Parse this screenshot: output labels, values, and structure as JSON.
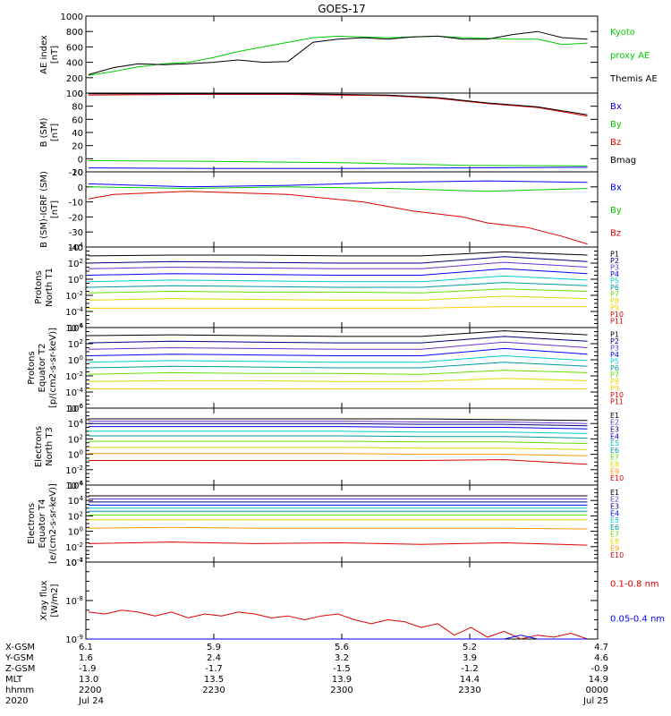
{
  "title": "GOES-17",
  "colors": {
    "black": "#000000",
    "blue": "#0000ff",
    "green": "#00cc00",
    "red": "#dd0000",
    "dark_red": "#bb0000",
    "navy": "#000080",
    "purple": "#6633cc",
    "cyan": "#00cccc",
    "teal": "#009999",
    "lime": "#66dd00",
    "yellow": "#dddd00",
    "orange": "#ff9900"
  },
  "chart_data": [
    {
      "type": "line",
      "ylabel": "AE index [nT]",
      "ylim": [
        0,
        1000
      ],
      "ticks": [
        "0",
        "200",
        "400",
        "600",
        "800",
        "1000"
      ],
      "legend": [
        "Kyoto",
        "proxy AE",
        "Themis AE"
      ],
      "series": [
        {
          "name": "Kyoto proxy AE",
          "color": "#00cc00",
          "x": [
            0,
            0.05,
            0.1,
            0.15,
            0.2,
            0.25,
            0.3,
            0.35,
            0.4,
            0.45,
            0.5,
            0.55,
            0.6,
            0.65,
            0.7,
            0.75,
            0.8,
            0.85,
            0.9,
            0.95,
            1
          ],
          "y": [
            230,
            280,
            340,
            380,
            400,
            460,
            540,
            600,
            660,
            720,
            740,
            730,
            720,
            730,
            740,
            720,
            710,
            700,
            700,
            630,
            650
          ]
        },
        {
          "name": "Themis AE",
          "color": "#000000",
          "x": [
            0,
            0.05,
            0.1,
            0.15,
            0.2,
            0.25,
            0.3,
            0.35,
            0.4,
            0.45,
            0.5,
            0.55,
            0.6,
            0.65,
            0.7,
            0.75,
            0.8,
            0.85,
            0.9,
            0.95,
            1
          ],
          "y": [
            240,
            330,
            380,
            370,
            380,
            400,
            430,
            400,
            410,
            660,
            700,
            720,
            700,
            730,
            740,
            700,
            700,
            760,
            800,
            720,
            700
          ]
        }
      ]
    },
    {
      "type": "line",
      "ylabel": "B (SM) [nT]",
      "ylim": [
        -20,
        100
      ],
      "ticks": [
        "-20",
        "0",
        "20",
        "40",
        "60",
        "80",
        "100"
      ],
      "legend": [
        "Bx",
        "By",
        "Bz",
        "Bmag"
      ],
      "series": [
        {
          "name": "Bx",
          "color": "#0000ff",
          "x": [
            0,
            0.25,
            0.5,
            0.75,
            1
          ],
          "y": [
            -14,
            -15,
            -15,
            -14,
            -13
          ]
        },
        {
          "name": "By",
          "color": "#00cc00",
          "x": [
            0,
            0.25,
            0.5,
            0.75,
            1
          ],
          "y": [
            -3,
            -4,
            -6,
            -10,
            -11
          ]
        },
        {
          "name": "Bz",
          "color": "#dd0000",
          "x": [
            0,
            0.2,
            0.4,
            0.6,
            0.7,
            0.8,
            0.9,
            1
          ],
          "y": [
            97,
            98,
            98,
            96,
            92,
            84,
            78,
            65
          ]
        },
        {
          "name": "Bmag",
          "color": "#000000",
          "x": [
            0,
            0.2,
            0.4,
            0.6,
            0.7,
            0.8,
            0.9,
            1
          ],
          "y": [
            99,
            99,
            99,
            97,
            93,
            85,
            79,
            67
          ]
        }
      ]
    },
    {
      "type": "line",
      "ylabel": "B (SM)-IGRF (SM) [nT]",
      "ylim": [
        -40,
        10
      ],
      "ticks": [
        "-40",
        "-30",
        "-20",
        "-10",
        "0",
        "10"
      ],
      "legend": [
        "Bx",
        "By",
        "Bz"
      ],
      "series": [
        {
          "name": "Bx",
          "color": "#0000ff",
          "x": [
            0,
            0.2,
            0.4,
            0.6,
            0.8,
            1
          ],
          "y": [
            2,
            0,
            1,
            3,
            4,
            3
          ]
        },
        {
          "name": "By",
          "color": "#00cc00",
          "x": [
            0,
            0.2,
            0.4,
            0.6,
            0.8,
            1
          ],
          "y": [
            0,
            -1,
            0,
            -1,
            -3,
            -1
          ]
        },
        {
          "name": "Bz",
          "color": "#dd0000",
          "x": [
            0,
            0.05,
            0.2,
            0.4,
            0.55,
            0.65,
            0.75,
            0.8,
            0.88,
            0.95,
            1
          ],
          "y": [
            -8,
            -5,
            -3,
            -5,
            -10,
            -16,
            -20,
            -24,
            -27,
            -33,
            -38
          ]
        }
      ]
    },
    {
      "type": "line",
      "ylabel": "Protons North T1",
      "log": true,
      "ylim": [
        -6,
        4
      ],
      "ticks": [
        "10^-6",
        "10^-4",
        "10^-2",
        "10^0",
        "10^2",
        "10^4"
      ],
      "legend": [
        "P1",
        "P2",
        "P3",
        "P4",
        "P5",
        "P6",
        "P7",
        "P8",
        "P9",
        "P10",
        "P11"
      ],
      "series": [
        {
          "name": "P1",
          "color": "#000000",
          "y": [
            2.9,
            3.0,
            3.0,
            2.9,
            2.9,
            3.4,
            3.0
          ]
        },
        {
          "name": "P2",
          "color": "#000080",
          "y": [
            2.0,
            2.2,
            2.1,
            2.0,
            2.0,
            2.8,
            2.2
          ]
        },
        {
          "name": "P3",
          "color": "#6633cc",
          "y": [
            1.3,
            1.5,
            1.4,
            1.3,
            1.3,
            2.1,
            1.5
          ]
        },
        {
          "name": "P4",
          "color": "#0000ff",
          "y": [
            0.5,
            0.7,
            0.6,
            0.5,
            0.5,
            1.3,
            0.7
          ]
        },
        {
          "name": "P5",
          "color": "#00cccc",
          "y": [
            -0.3,
            -0.1,
            -0.2,
            -0.3,
            -0.3,
            0.4,
            -0.1
          ]
        },
        {
          "name": "P6",
          "color": "#009999",
          "y": [
            -1.0,
            -0.8,
            -0.9,
            -1.0,
            -1.0,
            -0.4,
            -0.8
          ]
        },
        {
          "name": "P7",
          "color": "#66dd00",
          "y": [
            -1.7,
            -1.5,
            -1.6,
            -1.6,
            -1.7,
            -1.2,
            -1.5
          ]
        },
        {
          "name": "P8",
          "color": "#dddd00",
          "y": [
            -2.6,
            -2.4,
            -2.5,
            -2.6,
            -2.6,
            -2.1,
            -2.4
          ]
        },
        {
          "name": "P9",
          "color": "#ffcc00",
          "y": [
            -3.6,
            -3.6,
            -3.6,
            -3.6,
            -3.6,
            -3.4,
            -3.4
          ]
        }
      ]
    },
    {
      "type": "line",
      "ylabel": "Protons Equator T2 [p/(cm2-s-sr-keV)]",
      "log": true,
      "ylim": [
        -6,
        4
      ],
      "ticks": [
        "10^-6",
        "10^-4",
        "10^-2",
        "10^0",
        "10^2",
        "10^4"
      ],
      "legend": [
        "P1",
        "P2",
        "P3",
        "P4",
        "P5",
        "P6",
        "P7",
        "P8",
        "P9",
        "P10",
        "P11"
      ],
      "series": [
        {
          "name": "P1",
          "color": "#000000",
          "y": [
            3.0,
            3.1,
            3.0,
            2.9,
            2.9,
            3.6,
            3.1
          ]
        },
        {
          "name": "P2",
          "color": "#000080",
          "y": [
            2.1,
            2.3,
            2.2,
            2.1,
            2.1,
            2.9,
            2.3
          ]
        },
        {
          "name": "P3",
          "color": "#6633cc",
          "y": [
            1.3,
            1.5,
            1.4,
            1.3,
            1.3,
            2.2,
            1.5
          ]
        },
        {
          "name": "P4",
          "color": "#0000ff",
          "y": [
            0.5,
            0.7,
            0.6,
            0.5,
            0.5,
            1.4,
            0.7
          ]
        },
        {
          "name": "P5",
          "color": "#00cccc",
          "y": [
            -0.3,
            -0.1,
            -0.2,
            -0.3,
            -0.3,
            0.5,
            -0.1
          ]
        },
        {
          "name": "P6",
          "color": "#009999",
          "y": [
            -1.0,
            -0.8,
            -0.9,
            -1.0,
            -1.0,
            -0.3,
            -0.8
          ]
        },
        {
          "name": "P7",
          "color": "#66dd00",
          "y": [
            -1.8,
            -1.6,
            -1.7,
            -1.7,
            -1.8,
            -1.3,
            -1.6
          ]
        },
        {
          "name": "P8",
          "color": "#dddd00",
          "y": [
            -2.7,
            -2.6,
            -2.6,
            -2.7,
            -2.7,
            -2.3,
            -2.6
          ]
        },
        {
          "name": "P9",
          "color": "#ffcc00",
          "y": [
            -3.6,
            -3.6,
            -3.6,
            -3.6,
            -3.6,
            -3.6,
            -3.6
          ]
        }
      ]
    },
    {
      "type": "line",
      "ylabel": "Electrons North T3",
      "log": true,
      "ylim": [
        -4,
        6
      ],
      "ticks": [
        "10^-4",
        "10^-2",
        "10^0",
        "10^2",
        "10^4",
        "10^6"
      ],
      "legend": [
        "E1",
        "E2",
        "E3",
        "E4",
        "E5",
        "E6",
        "E7",
        "E8",
        "E9",
        "E10"
      ],
      "series": [
        {
          "name": "E1",
          "color": "#000000",
          "y": [
            4.6,
            4.6,
            4.6,
            4.6,
            4.6,
            4.5,
            4.4
          ]
        },
        {
          "name": "E2",
          "color": "#6633cc",
          "y": [
            4.3,
            4.3,
            4.3,
            4.3,
            4.2,
            4.2,
            4.0
          ]
        },
        {
          "name": "E3",
          "color": "#000080",
          "y": [
            4.0,
            4.0,
            4.0,
            4.0,
            3.9,
            3.9,
            3.7
          ]
        },
        {
          "name": "E4",
          "color": "#0000ff",
          "y": [
            3.6,
            3.6,
            3.6,
            3.6,
            3.5,
            3.5,
            3.3
          ]
        },
        {
          "name": "E5",
          "color": "#00cccc",
          "y": [
            3.0,
            3.0,
            3.0,
            3.0,
            2.9,
            2.9,
            2.7
          ]
        },
        {
          "name": "E6",
          "color": "#009999",
          "y": [
            2.4,
            2.4,
            2.4,
            2.4,
            2.3,
            2.3,
            2.1
          ]
        },
        {
          "name": "E7",
          "color": "#66dd00",
          "y": [
            1.7,
            1.7,
            1.7,
            1.7,
            1.6,
            1.6,
            1.4
          ]
        },
        {
          "name": "E8",
          "color": "#dddd00",
          "y": [
            0.9,
            0.9,
            0.9,
            0.9,
            0.8,
            0.8,
            0.6
          ]
        },
        {
          "name": "E9",
          "color": "#ff9900",
          "y": [
            0.1,
            0.1,
            0.1,
            0.1,
            0.0,
            0.0,
            -0.2
          ]
        },
        {
          "name": "E10",
          "color": "#dd0000",
          "y": [
            -0.8,
            -0.8,
            -0.8,
            -0.8,
            -0.8,
            -0.7,
            -1.3
          ]
        }
      ]
    },
    {
      "type": "line",
      "ylabel": "Electrons Equator T4 [e/(cm2-s-sr-keV)]",
      "log": true,
      "ylim": [
        -4,
        6
      ],
      "ticks": [
        "10^-4",
        "10^-2",
        "10^0",
        "10^2",
        "10^4",
        "10^6"
      ],
      "legend": [
        "E1",
        "E2",
        "E3",
        "E4",
        "E5",
        "E6",
        "E7",
        "E8",
        "E9",
        "E10"
      ],
      "series": [
        {
          "name": "E1",
          "color": "#000000",
          "y": [
            4.6,
            4.6,
            4.6,
            4.6,
            4.6,
            4.6,
            4.6
          ]
        },
        {
          "name": "E2",
          "color": "#6633cc",
          "y": [
            4.2,
            4.2,
            4.2,
            4.2,
            4.2,
            4.2,
            4.2
          ]
        },
        {
          "name": "E3",
          "color": "#000080",
          "y": [
            3.8,
            3.8,
            3.8,
            3.8,
            3.8,
            3.8,
            3.8
          ]
        },
        {
          "name": "E4",
          "color": "#0000ff",
          "y": [
            3.4,
            3.4,
            3.4,
            3.4,
            3.4,
            3.4,
            3.4
          ]
        },
        {
          "name": "E5",
          "color": "#00cccc",
          "y": [
            3.0,
            3.0,
            3.0,
            3.0,
            3.0,
            3.0,
            3.0
          ]
        },
        {
          "name": "E6",
          "color": "#009999",
          "y": [
            2.6,
            2.6,
            2.6,
            2.6,
            2.6,
            2.6,
            2.6
          ]
        },
        {
          "name": "E7",
          "color": "#66dd00",
          "y": [
            2.1,
            2.1,
            2.1,
            2.1,
            2.1,
            2.1,
            2.1
          ]
        },
        {
          "name": "E8",
          "color": "#dddd00",
          "y": [
            1.5,
            1.5,
            1.5,
            1.5,
            1.5,
            1.5,
            1.5
          ]
        },
        {
          "name": "E9",
          "color": "#ff9900",
          "y": [
            0.4,
            0.5,
            0.4,
            0.4,
            0.4,
            0.4,
            0.3
          ]
        },
        {
          "name": "E10",
          "color": "#dd0000",
          "y": [
            -1.6,
            -1.4,
            -1.6,
            -1.5,
            -1.7,
            -1.5,
            -1.8
          ]
        }
      ]
    },
    {
      "type": "line",
      "ylabel": "Xray flux [W/m2]",
      "log": true,
      "ylim": [
        -9,
        -7
      ],
      "ticks": [
        "10^-9",
        "10^-8",
        "10^-7"
      ],
      "legend": [
        "0.1-0.8 nm",
        "0.05-0.4 nm"
      ],
      "series": [
        {
          "name": "0.1-0.8 nm",
          "color": "#dd0000",
          "y": [
            -8.3,
            -8.35,
            -8.25,
            -8.3,
            -8.4,
            -8.3,
            -8.45,
            -8.35,
            -8.4,
            -8.3,
            -8.35,
            -8.45,
            -8.4,
            -8.5,
            -8.4,
            -8.35,
            -8.5,
            -8.6,
            -8.5,
            -8.55,
            -8.7,
            -8.6,
            -8.9,
            -8.7,
            -8.95,
            -8.8,
            -9.0,
            -8.9,
            -8.95,
            -8.85,
            -9.0
          ]
        },
        {
          "name": "0.05-0.4 nm",
          "color": "#0000ff",
          "y": [
            -9.5,
            -9.5,
            -9.5,
            -9.5,
            -9.5,
            -9.5,
            -9.5,
            -9.5,
            -9.5,
            -9.5,
            -9.5,
            -9.5,
            -9.5,
            -9.5,
            -9.5,
            -9.5,
            -9.5,
            -9.5,
            -9.5,
            -9.5,
            -9.5,
            -9.5,
            -9.5,
            -9.5,
            -9.5,
            -9.5,
            -8.9,
            -9.5,
            -9.5,
            -9.5,
            -9.5
          ]
        }
      ]
    }
  ],
  "xaxis": {
    "labels": [
      "X-GSM",
      "Y-GSM",
      "Z-GSM",
      "MLT",
      "hhmm",
      "2020"
    ],
    "columns": [
      [
        "6.1",
        "1.6",
        "-1.9",
        "13.0",
        "2200",
        "Jul 24"
      ],
      [
        "5.9",
        "2.4",
        "-1.7",
        "13.5",
        "2230",
        ""
      ],
      [
        "5.6",
        "3.2",
        "-1.5",
        "13.9",
        "2300",
        ""
      ],
      [
        "5.2",
        "3.9",
        "-1.2",
        "14.4",
        "2330",
        ""
      ],
      [
        "4.7",
        "4.6",
        "-0.9",
        "14.9",
        "0000",
        "Jul 25"
      ]
    ]
  }
}
